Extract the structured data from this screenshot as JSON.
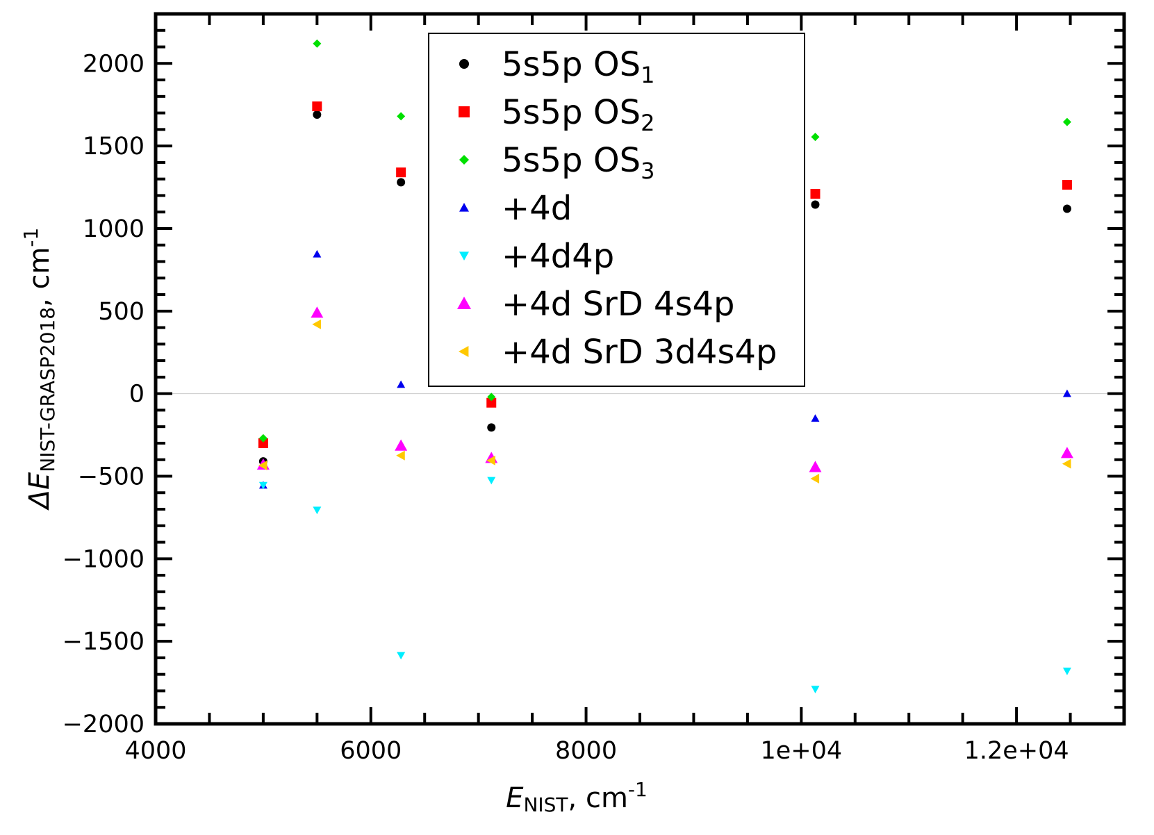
{
  "chart_data": {
    "type": "scatter",
    "title": "",
    "xlabel": {
      "main": "E",
      "sub": "NIST",
      "units": ", cm",
      "units_exp": "-1"
    },
    "ylabel": {
      "prefix": "ΔE",
      "sub": "NIST-GRASP2018",
      "units": ", cm",
      "units_exp": "-1"
    },
    "xlim": [
      4000,
      13000
    ],
    "ylim": [
      -2000,
      2300
    ],
    "x_ticks": [
      {
        "value": 4000,
        "label": "4000"
      },
      {
        "value": 6000,
        "label": "6000"
      },
      {
        "value": 8000,
        "label": "8000"
      },
      {
        "value": 10000,
        "label": "1e+04"
      },
      {
        "value": 12000,
        "label": "1.2e+04"
      }
    ],
    "y_ticks": [
      {
        "value": 2000,
        "label": "2000"
      },
      {
        "value": 1500,
        "label": "1500"
      },
      {
        "value": 1000,
        "label": "1000"
      },
      {
        "value": 500,
        "label": "500"
      },
      {
        "value": 0,
        "label": "0"
      },
      {
        "value": -500,
        "label": "−500"
      },
      {
        "value": -1000,
        "label": "−1000"
      },
      {
        "value": -1500,
        "label": "−1500"
      },
      {
        "value": -2000,
        "label": "−2000"
      }
    ],
    "zero_line": true,
    "legend_position": "top-center",
    "series": [
      {
        "name": "5s5p OS",
        "name_sub": "1",
        "marker": "circle",
        "color": "#000000",
        "size": 6,
        "x": [
          5000,
          5500,
          6280,
          7120,
          10130,
          12470
        ],
        "y": [
          -410,
          1690,
          1280,
          -205,
          1145,
          1120
        ]
      },
      {
        "name": "5s5p OS",
        "name_sub": "2",
        "marker": "square",
        "color": "#ff0000",
        "size": 7,
        "x": [
          5000,
          5500,
          6280,
          7120,
          10130,
          12470
        ],
        "y": [
          -300,
          1740,
          1340,
          -55,
          1210,
          1265
        ]
      },
      {
        "name": "5s5p OS",
        "name_sub": "3",
        "marker": "diamond",
        "color": "#00e000",
        "size": 6,
        "x": [
          5000,
          5500,
          6280,
          7120,
          10130,
          12470
        ],
        "y": [
          -270,
          2120,
          1680,
          -20,
          1555,
          1645
        ]
      },
      {
        "name": "+4d",
        "name_sub": "",
        "marker": "triangle-up",
        "color": "#0000ee",
        "size": 6,
        "x": [
          5000,
          5500,
          6280,
          7120,
          10130,
          12470
        ],
        "y": [
          -555,
          845,
          55,
          -395,
          -150,
          0
        ]
      },
      {
        "name": "+4d4p",
        "name_sub": "",
        "marker": "triangle-down",
        "color": "#00eeff",
        "size": 6,
        "x": [
          5000,
          5500,
          6280,
          7120,
          10130,
          12470
        ],
        "y": [
          -555,
          -705,
          -1585,
          -525,
          -1790,
          -1680
        ]
      },
      {
        "name": "+4d SrD 4s4p",
        "name_sub": "",
        "marker": "triangle-up-large",
        "color": "#ff00ff",
        "size": 9,
        "x": [
          5000,
          5500,
          6280,
          7120,
          10130,
          12470
        ],
        "y": [
          -430,
          490,
          -315,
          -390,
          -445,
          -360
        ]
      },
      {
        "name": "+4d SrD 3d4s4p",
        "name_sub": "",
        "marker": "triangle-left",
        "color": "#ffc800",
        "size": 7,
        "x": [
          5000,
          5500,
          6280,
          7120,
          10130,
          12470
        ],
        "y": [
          -435,
          420,
          -375,
          -405,
          -515,
          -425
        ]
      }
    ]
  }
}
